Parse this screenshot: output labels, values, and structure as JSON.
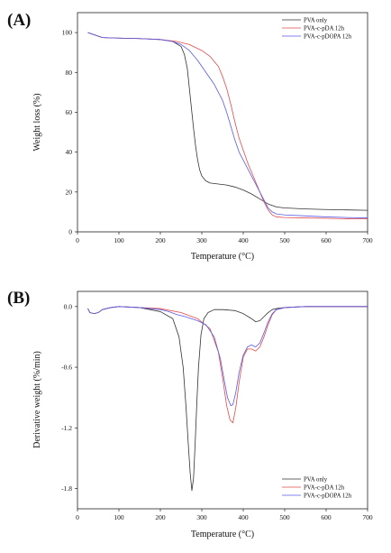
{
  "chart_data": [
    {
      "panel_label": "(A)",
      "type": "line",
      "xlabel": "Temperature (°C)",
      "ylabel": "Weight loss (%)",
      "xlim": [
        0,
        700
      ],
      "ylim": [
        0,
        110
      ],
      "xticks": [
        "0",
        "100",
        "200",
        "300",
        "400",
        "500",
        "600",
        "700"
      ],
      "yticks": [
        "0",
        "20",
        "40",
        "60",
        "80",
        "100"
      ],
      "legend_position": "top-right",
      "grid": false,
      "series": [
        {
          "name": "PVA only",
          "color": "#333333",
          "x": [
            25,
            60,
            100,
            150,
            200,
            230,
            250,
            258,
            265,
            270,
            275,
            280,
            285,
            290,
            295,
            300,
            310,
            320,
            340,
            360,
            380,
            400,
            420,
            440,
            460,
            480,
            500,
            550,
            600,
            650,
            700
          ],
          "y": [
            100,
            97.5,
            97.2,
            97,
            96.5,
            95.5,
            93,
            89,
            82,
            72,
            62,
            52,
            43,
            36,
            31,
            28,
            25.5,
            24.5,
            24,
            23.5,
            22.5,
            21,
            19,
            16.5,
            14,
            12.5,
            12,
            11.5,
            11.2,
            11,
            10.8
          ]
        },
        {
          "name": "PVA-c-pDA 12h",
          "color": "#e34a4a",
          "x": [
            25,
            60,
            100,
            150,
            200,
            240,
            270,
            300,
            320,
            340,
            350,
            360,
            370,
            380,
            390,
            400,
            410,
            420,
            430,
            440,
            450,
            460,
            470,
            480,
            500,
            550,
            600,
            650,
            700
          ],
          "y": [
            100,
            97.5,
            97.2,
            97,
            96.5,
            95.5,
            94,
            91,
            88,
            83,
            78,
            72,
            64,
            55,
            47,
            41,
            35,
            30,
            25,
            20,
            15,
            11,
            8.5,
            7.5,
            7.2,
            7,
            6.8,
            6.6,
            6.5
          ]
        },
        {
          "name": "PVA-c-pDOPA 12h",
          "color": "#5a5ae6",
          "x": [
            25,
            60,
            100,
            150,
            200,
            230,
            250,
            270,
            290,
            310,
            330,
            350,
            360,
            370,
            380,
            390,
            400,
            410,
            420,
            430,
            440,
            450,
            460,
            470,
            480,
            500,
            550,
            600,
            650,
            700
          ],
          "y": [
            100,
            97.5,
            97.2,
            97,
            96.5,
            95.5,
            94,
            91,
            86,
            80,
            74,
            66,
            60,
            53,
            46,
            40,
            36,
            32,
            28,
            24,
            20,
            16,
            12,
            10,
            9,
            8.5,
            8,
            7.5,
            7.2,
            7
          ]
        }
      ]
    },
    {
      "panel_label": "(B)",
      "type": "line",
      "xlabel": "Temperature (°C)",
      "ylabel": "Derivative weight (%/min)",
      "xlim": [
        0,
        700
      ],
      "ylim": [
        -2.0,
        0.15
      ],
      "xticks": [
        "0",
        "100",
        "200",
        "300",
        "400",
        "500",
        "600",
        "700"
      ],
      "yticks": [
        "0.0",
        "-0.6",
        "-1.2",
        "-1.8"
      ],
      "legend_position": "bottom-right",
      "grid": false,
      "series": [
        {
          "name": "PVA only",
          "color": "#333333",
          "x": [
            25,
            30,
            40,
            50,
            60,
            80,
            100,
            150,
            200,
            230,
            245,
            255,
            262,
            268,
            272,
            276,
            280,
            284,
            288,
            292,
            298,
            305,
            315,
            330,
            350,
            380,
            400,
            420,
            430,
            440,
            450,
            460,
            470,
            480,
            500,
            550,
            600,
            650,
            700
          ],
          "y": [
            -0.02,
            -0.06,
            -0.07,
            -0.06,
            -0.03,
            -0.01,
            0,
            -0.01,
            -0.05,
            -0.12,
            -0.3,
            -0.6,
            -1.0,
            -1.4,
            -1.65,
            -1.82,
            -1.7,
            -1.35,
            -0.95,
            -0.6,
            -0.28,
            -0.12,
            -0.06,
            -0.03,
            -0.03,
            -0.04,
            -0.07,
            -0.12,
            -0.15,
            -0.14,
            -0.1,
            -0.06,
            -0.03,
            -0.02,
            -0.01,
            0,
            0,
            0,
            0
          ]
        },
        {
          "name": "PVA-c-pDA 12h",
          "color": "#e34a4a",
          "x": [
            25,
            30,
            40,
            50,
            60,
            80,
            100,
            150,
            200,
            250,
            290,
            320,
            340,
            350,
            360,
            368,
            375,
            382,
            390,
            400,
            410,
            420,
            430,
            440,
            450,
            460,
            470,
            480,
            500,
            550,
            600,
            650,
            700
          ],
          "y": [
            -0.02,
            -0.06,
            -0.07,
            -0.06,
            -0.03,
            -0.01,
            0,
            -0.01,
            -0.02,
            -0.06,
            -0.12,
            -0.22,
            -0.45,
            -0.7,
            -0.98,
            -1.12,
            -1.15,
            -1.0,
            -0.75,
            -0.5,
            -0.42,
            -0.42,
            -0.44,
            -0.4,
            -0.3,
            -0.18,
            -0.08,
            -0.03,
            -0.01,
            0,
            0,
            0,
            0
          ]
        },
        {
          "name": "PVA-c-pDOPA 12h",
          "color": "#5a5ae6",
          "x": [
            25,
            30,
            40,
            50,
            60,
            80,
            100,
            150,
            200,
            220,
            240,
            260,
            290,
            310,
            330,
            345,
            355,
            362,
            370,
            375,
            382,
            390,
            400,
            410,
            420,
            430,
            440,
            450,
            460,
            470,
            480,
            500,
            550,
            600,
            650,
            700
          ],
          "y": [
            -0.02,
            -0.06,
            -0.07,
            -0.06,
            -0.03,
            -0.01,
            0,
            -0.01,
            -0.03,
            -0.05,
            -0.08,
            -0.1,
            -0.14,
            -0.18,
            -0.3,
            -0.52,
            -0.75,
            -0.9,
            -0.98,
            -0.97,
            -0.85,
            -0.65,
            -0.48,
            -0.4,
            -0.38,
            -0.4,
            -0.36,
            -0.26,
            -0.15,
            -0.07,
            -0.03,
            -0.01,
            0,
            0,
            0,
            0
          ]
        }
      ]
    }
  ]
}
